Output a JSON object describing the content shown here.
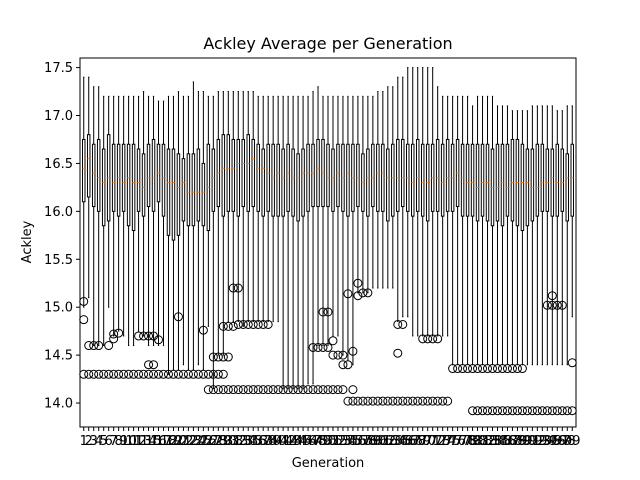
{
  "chart_data": {
    "type": "boxplot",
    "title": "Ackley Average per Generation",
    "xlabel": "Generation",
    "ylabel": "Ackley",
    "ylim": [
      13.75,
      17.6
    ],
    "yticks": [
      14.0,
      14.5,
      15.0,
      15.5,
      16.0,
      16.5,
      17.0,
      17.5
    ],
    "ytick_labels": [
      "14.0",
      "14.5",
      "15.0",
      "15.5",
      "16.0",
      "16.5",
      "17.0",
      "17.5"
    ],
    "grid": false,
    "colors": {
      "median": "#ff7f0e",
      "box": "#000000",
      "flier": "#000000"
    },
    "x_categories": [
      "1",
      "2",
      "3",
      "4",
      "5",
      "6",
      "7",
      "8",
      "9",
      "10",
      "11",
      "12",
      "13",
      "14",
      "15",
      "16",
      "17",
      "18",
      "19",
      "20",
      "21",
      "22",
      "23",
      "24",
      "25",
      "26",
      "27",
      "28",
      "29",
      "30",
      "31",
      "32",
      "33",
      "34",
      "35",
      "36",
      "37",
      "38",
      "39",
      "40",
      "41",
      "42",
      "43",
      "44",
      "45",
      "46",
      "47",
      "48",
      "49",
      "50",
      "51",
      "52",
      "53",
      "54",
      "55",
      "56",
      "57",
      "58",
      "59",
      "60",
      "61",
      "62",
      "63",
      "64",
      "65",
      "66",
      "67",
      "68",
      "69",
      "70",
      "71",
      "72",
      "73",
      "74",
      "75",
      "76",
      "77",
      "78",
      "79",
      "80",
      "81",
      "82",
      "83",
      "84",
      "85",
      "86",
      "87",
      "88",
      "89",
      "90",
      "91",
      "92",
      "93",
      "94",
      "95",
      "96",
      "97",
      "98",
      "99"
    ],
    "q1": [
      16.1,
      16.15,
      16.05,
      16.0,
      15.85,
      15.9,
      16.0,
      15.95,
      16.0,
      15.85,
      15.8,
      16.0,
      15.95,
      16.05,
      16.0,
      16.1,
      15.95,
      15.75,
      15.7,
      15.75,
      15.9,
      15.85,
      15.85,
      15.9,
      15.85,
      15.8,
      16.0,
      16.05,
      15.95,
      16.0,
      16.0,
      15.95,
      16.05,
      16.0,
      16.05,
      16.0,
      15.95,
      16.0,
      15.95,
      15.95,
      15.95,
      16.0,
      15.95,
      15.9,
      15.95,
      16.0,
      16.05,
      16.05,
      16.05,
      16.05,
      16.0,
      16.05,
      16.0,
      15.95,
      16.0,
      16.05,
      16.0,
      15.95,
      16.05,
      16.0,
      16.0,
      15.9,
      15.95,
      16.0,
      16.05,
      16.0,
      15.95,
      16.0,
      15.95,
      15.9,
      16.0,
      16.0,
      15.95,
      16.0,
      16.0,
      16.05,
      15.95,
      15.95,
      15.95,
      15.9,
      15.95,
      15.9,
      15.85,
      15.9,
      15.85,
      15.95,
      15.9,
      15.85,
      15.8,
      15.85,
      15.9,
      15.95,
      16.0,
      16.0,
      15.95,
      15.95,
      16.0,
      15.9,
      15.95
    ],
    "median": [
      16.45,
      16.55,
      16.4,
      16.35,
      16.3,
      16.35,
      16.3,
      16.35,
      16.3,
      16.35,
      16.3,
      16.3,
      16.25,
      16.35,
      16.35,
      16.4,
      16.35,
      16.3,
      16.3,
      16.25,
      16.3,
      16.2,
      16.2,
      16.2,
      16.2,
      16.25,
      16.35,
      16.4,
      16.45,
      16.45,
      16.45,
      16.5,
      16.5,
      16.5,
      16.55,
      16.45,
      16.45,
      16.4,
      16.35,
      16.4,
      16.35,
      16.4,
      16.35,
      16.35,
      16.4,
      16.4,
      16.4,
      16.45,
      16.4,
      16.35,
      16.35,
      16.4,
      16.35,
      16.4,
      16.35,
      16.35,
      16.3,
      16.35,
      16.35,
      16.4,
      16.4,
      16.35,
      16.35,
      16.35,
      16.35,
      16.35,
      16.3,
      16.35,
      16.3,
      16.3,
      16.35,
      16.35,
      16.3,
      16.35,
      16.35,
      16.4,
      16.35,
      16.3,
      16.3,
      16.25,
      16.3,
      16.3,
      16.25,
      16.25,
      16.3,
      16.25,
      16.3,
      16.3,
      16.3,
      16.3,
      16.25,
      16.25,
      16.3,
      16.3,
      16.35,
      16.3,
      16.3,
      16.35,
      16.35
    ],
    "q3": [
      16.75,
      16.8,
      16.7,
      16.75,
      16.65,
      16.8,
      16.7,
      16.7,
      16.7,
      16.7,
      16.7,
      16.65,
      16.6,
      16.7,
      16.75,
      16.7,
      16.7,
      16.65,
      16.65,
      16.6,
      16.55,
      16.6,
      16.6,
      16.65,
      16.5,
      16.7,
      16.65,
      16.75,
      16.8,
      16.8,
      16.75,
      16.75,
      16.75,
      16.8,
      16.75,
      16.7,
      16.65,
      16.7,
      16.7,
      16.7,
      16.65,
      16.7,
      16.65,
      16.6,
      16.65,
      16.7,
      16.7,
      16.75,
      16.75,
      16.7,
      16.65,
      16.7,
      16.7,
      16.7,
      16.7,
      16.7,
      16.6,
      16.65,
      16.7,
      16.7,
      16.7,
      16.65,
      16.7,
      16.75,
      16.75,
      16.7,
      16.7,
      16.75,
      16.7,
      16.7,
      16.7,
      16.75,
      16.7,
      16.75,
      16.7,
      16.75,
      16.7,
      16.7,
      16.7,
      16.7,
      16.7,
      16.7,
      16.65,
      16.7,
      16.7,
      16.7,
      16.75,
      16.75,
      16.7,
      16.65,
      16.65,
      16.7,
      16.7,
      16.65,
      16.65,
      16.7,
      16.65,
      16.6,
      16.7
    ],
    "whisker_low": [
      15.0,
      15.1,
      14.6,
      14.6,
      14.6,
      15.0,
      14.7,
      14.75,
      14.7,
      14.6,
      14.6,
      14.75,
      14.7,
      14.6,
      14.6,
      14.6,
      14.6,
      14.3,
      14.35,
      14.35,
      14.4,
      14.35,
      14.35,
      14.4,
      14.35,
      14.8,
      14.15,
      14.5,
      14.5,
      14.85,
      14.85,
      14.85,
      14.8,
      14.85,
      14.85,
      14.85,
      14.85,
      14.85,
      14.85,
      14.85,
      14.15,
      14.15,
      14.15,
      14.15,
      14.15,
      14.2,
      14.2,
      14.6,
      14.6,
      14.6,
      14.7,
      14.7,
      14.5,
      14.45,
      14.4,
      15.15,
      15.15,
      15.15,
      15.2,
      15.2,
      15.2,
      15.2,
      15.2,
      14.85,
      14.9,
      14.9,
      14.7,
      14.7,
      14.7,
      14.7,
      14.7,
      14.7,
      14.7,
      14.7,
      14.4,
      14.4,
      14.4,
      14.4,
      14.4,
      14.4,
      14.4,
      14.4,
      14.4,
      14.4,
      14.4,
      14.4,
      14.4,
      14.4,
      14.4,
      14.4,
      14.4,
      14.4,
      14.4,
      14.4,
      14.4,
      14.4,
      14.4,
      14.4,
      14.9
    ],
    "whisker_high": [
      17.4,
      17.4,
      17.3,
      17.3,
      17.2,
      17.2,
      17.2,
      17.2,
      17.2,
      17.2,
      17.2,
      17.2,
      17.25,
      17.2,
      17.2,
      17.15,
      17.15,
      17.2,
      17.2,
      17.25,
      17.2,
      17.2,
      17.35,
      17.25,
      17.25,
      17.2,
      17.2,
      17.25,
      17.25,
      17.25,
      17.25,
      17.25,
      17.25,
      17.25,
      17.25,
      17.2,
      17.2,
      17.2,
      17.2,
      17.2,
      17.2,
      17.2,
      17.2,
      17.2,
      17.2,
      17.2,
      17.25,
      17.3,
      17.2,
      17.2,
      17.2,
      17.2,
      17.2,
      17.2,
      17.2,
      17.2,
      17.2,
      17.2,
      17.2,
      17.25,
      17.25,
      17.3,
      17.3,
      17.4,
      17.4,
      17.5,
      17.5,
      17.5,
      17.5,
      17.5,
      17.5,
      17.3,
      17.2,
      17.2,
      17.2,
      17.2,
      17.2,
      17.2,
      17.1,
      17.2,
      17.2,
      17.2,
      17.2,
      17.1,
      17.1,
      17.1,
      17.05,
      17.05,
      17.05,
      17.05,
      17.1,
      17.1,
      17.1,
      17.1,
      17.1,
      17.05,
      17.05,
      17.1,
      17.1
    ],
    "fliers": [
      {
        "x": 1,
        "y": [
          14.87,
          14.3,
          15.06
        ]
      },
      {
        "x": 2,
        "y": [
          14.6,
          14.3
        ]
      },
      {
        "x": 3,
        "y": [
          14.6,
          14.3
        ]
      },
      {
        "x": 4,
        "y": [
          14.6,
          14.3
        ]
      },
      {
        "x": 5,
        "y": [
          14.3
        ]
      },
      {
        "x": 6,
        "y": [
          14.6,
          14.3
        ]
      },
      {
        "x": 7,
        "y": [
          14.72,
          14.67,
          14.3
        ]
      },
      {
        "x": 8,
        "y": [
          14.73,
          14.3
        ]
      },
      {
        "x": 9,
        "y": [
          14.3
        ]
      },
      {
        "x": 10,
        "y": [
          14.3
        ]
      },
      {
        "x": 11,
        "y": [
          14.3
        ]
      },
      {
        "x": 12,
        "y": [
          14.7,
          14.3
        ]
      },
      {
        "x": 13,
        "y": [
          14.7,
          14.3
        ]
      },
      {
        "x": 14,
        "y": [
          14.7,
          14.4,
          14.3
        ]
      },
      {
        "x": 15,
        "y": [
          14.7,
          14.4,
          14.3
        ]
      },
      {
        "x": 16,
        "y": [
          14.66,
          14.3
        ]
      },
      {
        "x": 17,
        "y": [
          14.3
        ]
      },
      {
        "x": 18,
        "y": [
          14.3
        ]
      },
      {
        "x": 19,
        "y": [
          14.3
        ]
      },
      {
        "x": 20,
        "y": [
          14.9,
          14.3
        ]
      },
      {
        "x": 21,
        "y": [
          14.3
        ]
      },
      {
        "x": 22,
        "y": [
          14.3
        ]
      },
      {
        "x": 23,
        "y": [
          14.3
        ]
      },
      {
        "x": 24,
        "y": [
          14.3
        ]
      },
      {
        "x": 25,
        "y": [
          14.76,
          14.3
        ]
      },
      {
        "x": 26,
        "y": [
          14.14,
          14.3
        ]
      },
      {
        "x": 27,
        "y": [
          14.48,
          14.3,
          14.14
        ]
      },
      {
        "x": 28,
        "y": [
          14.48,
          14.3,
          14.14
        ]
      },
      {
        "x": 29,
        "y": [
          14.8,
          14.48,
          14.3,
          14.14
        ]
      },
      {
        "x": 30,
        "y": [
          14.8,
          14.48,
          14.14
        ]
      },
      {
        "x": 31,
        "y": [
          15.2,
          14.8,
          14.14
        ]
      },
      {
        "x": 32,
        "y": [
          15.2,
          14.82,
          14.14
        ]
      },
      {
        "x": 33,
        "y": [
          14.82,
          14.14
        ]
      },
      {
        "x": 34,
        "y": [
          14.82,
          14.14
        ]
      },
      {
        "x": 35,
        "y": [
          14.82,
          14.14
        ]
      },
      {
        "x": 36,
        "y": [
          14.82,
          14.14
        ]
      },
      {
        "x": 37,
        "y": [
          14.82,
          14.14
        ]
      },
      {
        "x": 38,
        "y": [
          14.82,
          14.14
        ]
      },
      {
        "x": 39,
        "y": [
          14.14
        ]
      },
      {
        "x": 40,
        "y": [
          14.14
        ]
      },
      {
        "x": 41,
        "y": [
          14.14
        ]
      },
      {
        "x": 42,
        "y": [
          14.14
        ]
      },
      {
        "x": 43,
        "y": [
          14.14
        ]
      },
      {
        "x": 44,
        "y": [
          14.14
        ]
      },
      {
        "x": 45,
        "y": [
          14.14
        ]
      },
      {
        "x": 46,
        "y": [
          14.14
        ]
      },
      {
        "x": 47,
        "y": [
          14.58,
          14.14
        ]
      },
      {
        "x": 48,
        "y": [
          14.58,
          14.14
        ]
      },
      {
        "x": 49,
        "y": [
          14.95,
          14.58,
          14.14
        ]
      },
      {
        "x": 50,
        "y": [
          14.95,
          14.58,
          14.14
        ]
      },
      {
        "x": 51,
        "y": [
          14.65,
          14.5,
          14.14
        ]
      },
      {
        "x": 52,
        "y": [
          14.5,
          14.14
        ]
      },
      {
        "x": 53,
        "y": [
          14.5,
          14.4,
          14.14
        ]
      },
      {
        "x": 54,
        "y": [
          15.14,
          14.4,
          14.02
        ]
      },
      {
        "x": 55,
        "y": [
          14.54,
          14.02,
          14.14
        ]
      },
      {
        "x": 56,
        "y": [
          15.25,
          15.12,
          14.02
        ]
      },
      {
        "x": 57,
        "y": [
          15.15,
          14.02
        ]
      },
      {
        "x": 58,
        "y": [
          15.15,
          14.02
        ]
      },
      {
        "x": 59,
        "y": [
          14.02
        ]
      },
      {
        "x": 60,
        "y": [
          14.02
        ]
      },
      {
        "x": 61,
        "y": [
          14.02
        ]
      },
      {
        "x": 62,
        "y": [
          14.02
        ]
      },
      {
        "x": 63,
        "y": [
          14.02
        ]
      },
      {
        "x": 64,
        "y": [
          14.82,
          14.52,
          14.02
        ]
      },
      {
        "x": 65,
        "y": [
          14.82,
          14.02
        ]
      },
      {
        "x": 66,
        "y": [
          14.02
        ]
      },
      {
        "x": 67,
        "y": [
          14.02
        ]
      },
      {
        "x": 68,
        "y": [
          14.02
        ]
      },
      {
        "x": 69,
        "y": [
          14.67,
          14.02
        ]
      },
      {
        "x": 70,
        "y": [
          14.67,
          14.02
        ]
      },
      {
        "x": 71,
        "y": [
          14.67,
          14.02
        ]
      },
      {
        "x": 72,
        "y": [
          14.67,
          14.02
        ]
      },
      {
        "x": 73,
        "y": [
          14.02
        ]
      },
      {
        "x": 74,
        "y": [
          14.02
        ]
      },
      {
        "x": 75,
        "y": [
          14.36
        ]
      },
      {
        "x": 76,
        "y": [
          14.36
        ]
      },
      {
        "x": 77,
        "y": [
          14.36
        ]
      },
      {
        "x": 78,
        "y": [
          14.36
        ]
      },
      {
        "x": 79,
        "y": [
          14.36,
          13.92
        ]
      },
      {
        "x": 80,
        "y": [
          14.36,
          13.92
        ]
      },
      {
        "x": 81,
        "y": [
          14.36,
          13.92
        ]
      },
      {
        "x": 82,
        "y": [
          14.36,
          13.92
        ]
      },
      {
        "x": 83,
        "y": [
          14.36,
          13.92
        ]
      },
      {
        "x": 84,
        "y": [
          14.36,
          13.92
        ]
      },
      {
        "x": 85,
        "y": [
          14.36,
          13.92
        ]
      },
      {
        "x": 86,
        "y": [
          14.36,
          13.92
        ]
      },
      {
        "x": 87,
        "y": [
          14.36,
          13.92
        ]
      },
      {
        "x": 88,
        "y": [
          14.36,
          13.92
        ]
      },
      {
        "x": 89,
        "y": [
          14.36,
          13.92
        ]
      },
      {
        "x": 90,
        "y": [
          13.92
        ]
      },
      {
        "x": 91,
        "y": [
          13.92
        ]
      },
      {
        "x": 92,
        "y": [
          13.92
        ]
      },
      {
        "x": 93,
        "y": [
          13.92
        ]
      },
      {
        "x": 94,
        "y": [
          15.02,
          13.92
        ]
      },
      {
        "x": 95,
        "y": [
          15.12,
          15.02,
          13.92
        ]
      },
      {
        "x": 96,
        "y": [
          15.02,
          13.92
        ]
      },
      {
        "x": 97,
        "y": [
          15.02,
          13.92
        ]
      },
      {
        "x": 98,
        "y": [
          13.92
        ]
      },
      {
        "x": 99,
        "y": [
          14.42,
          13.92
        ]
      }
    ]
  }
}
